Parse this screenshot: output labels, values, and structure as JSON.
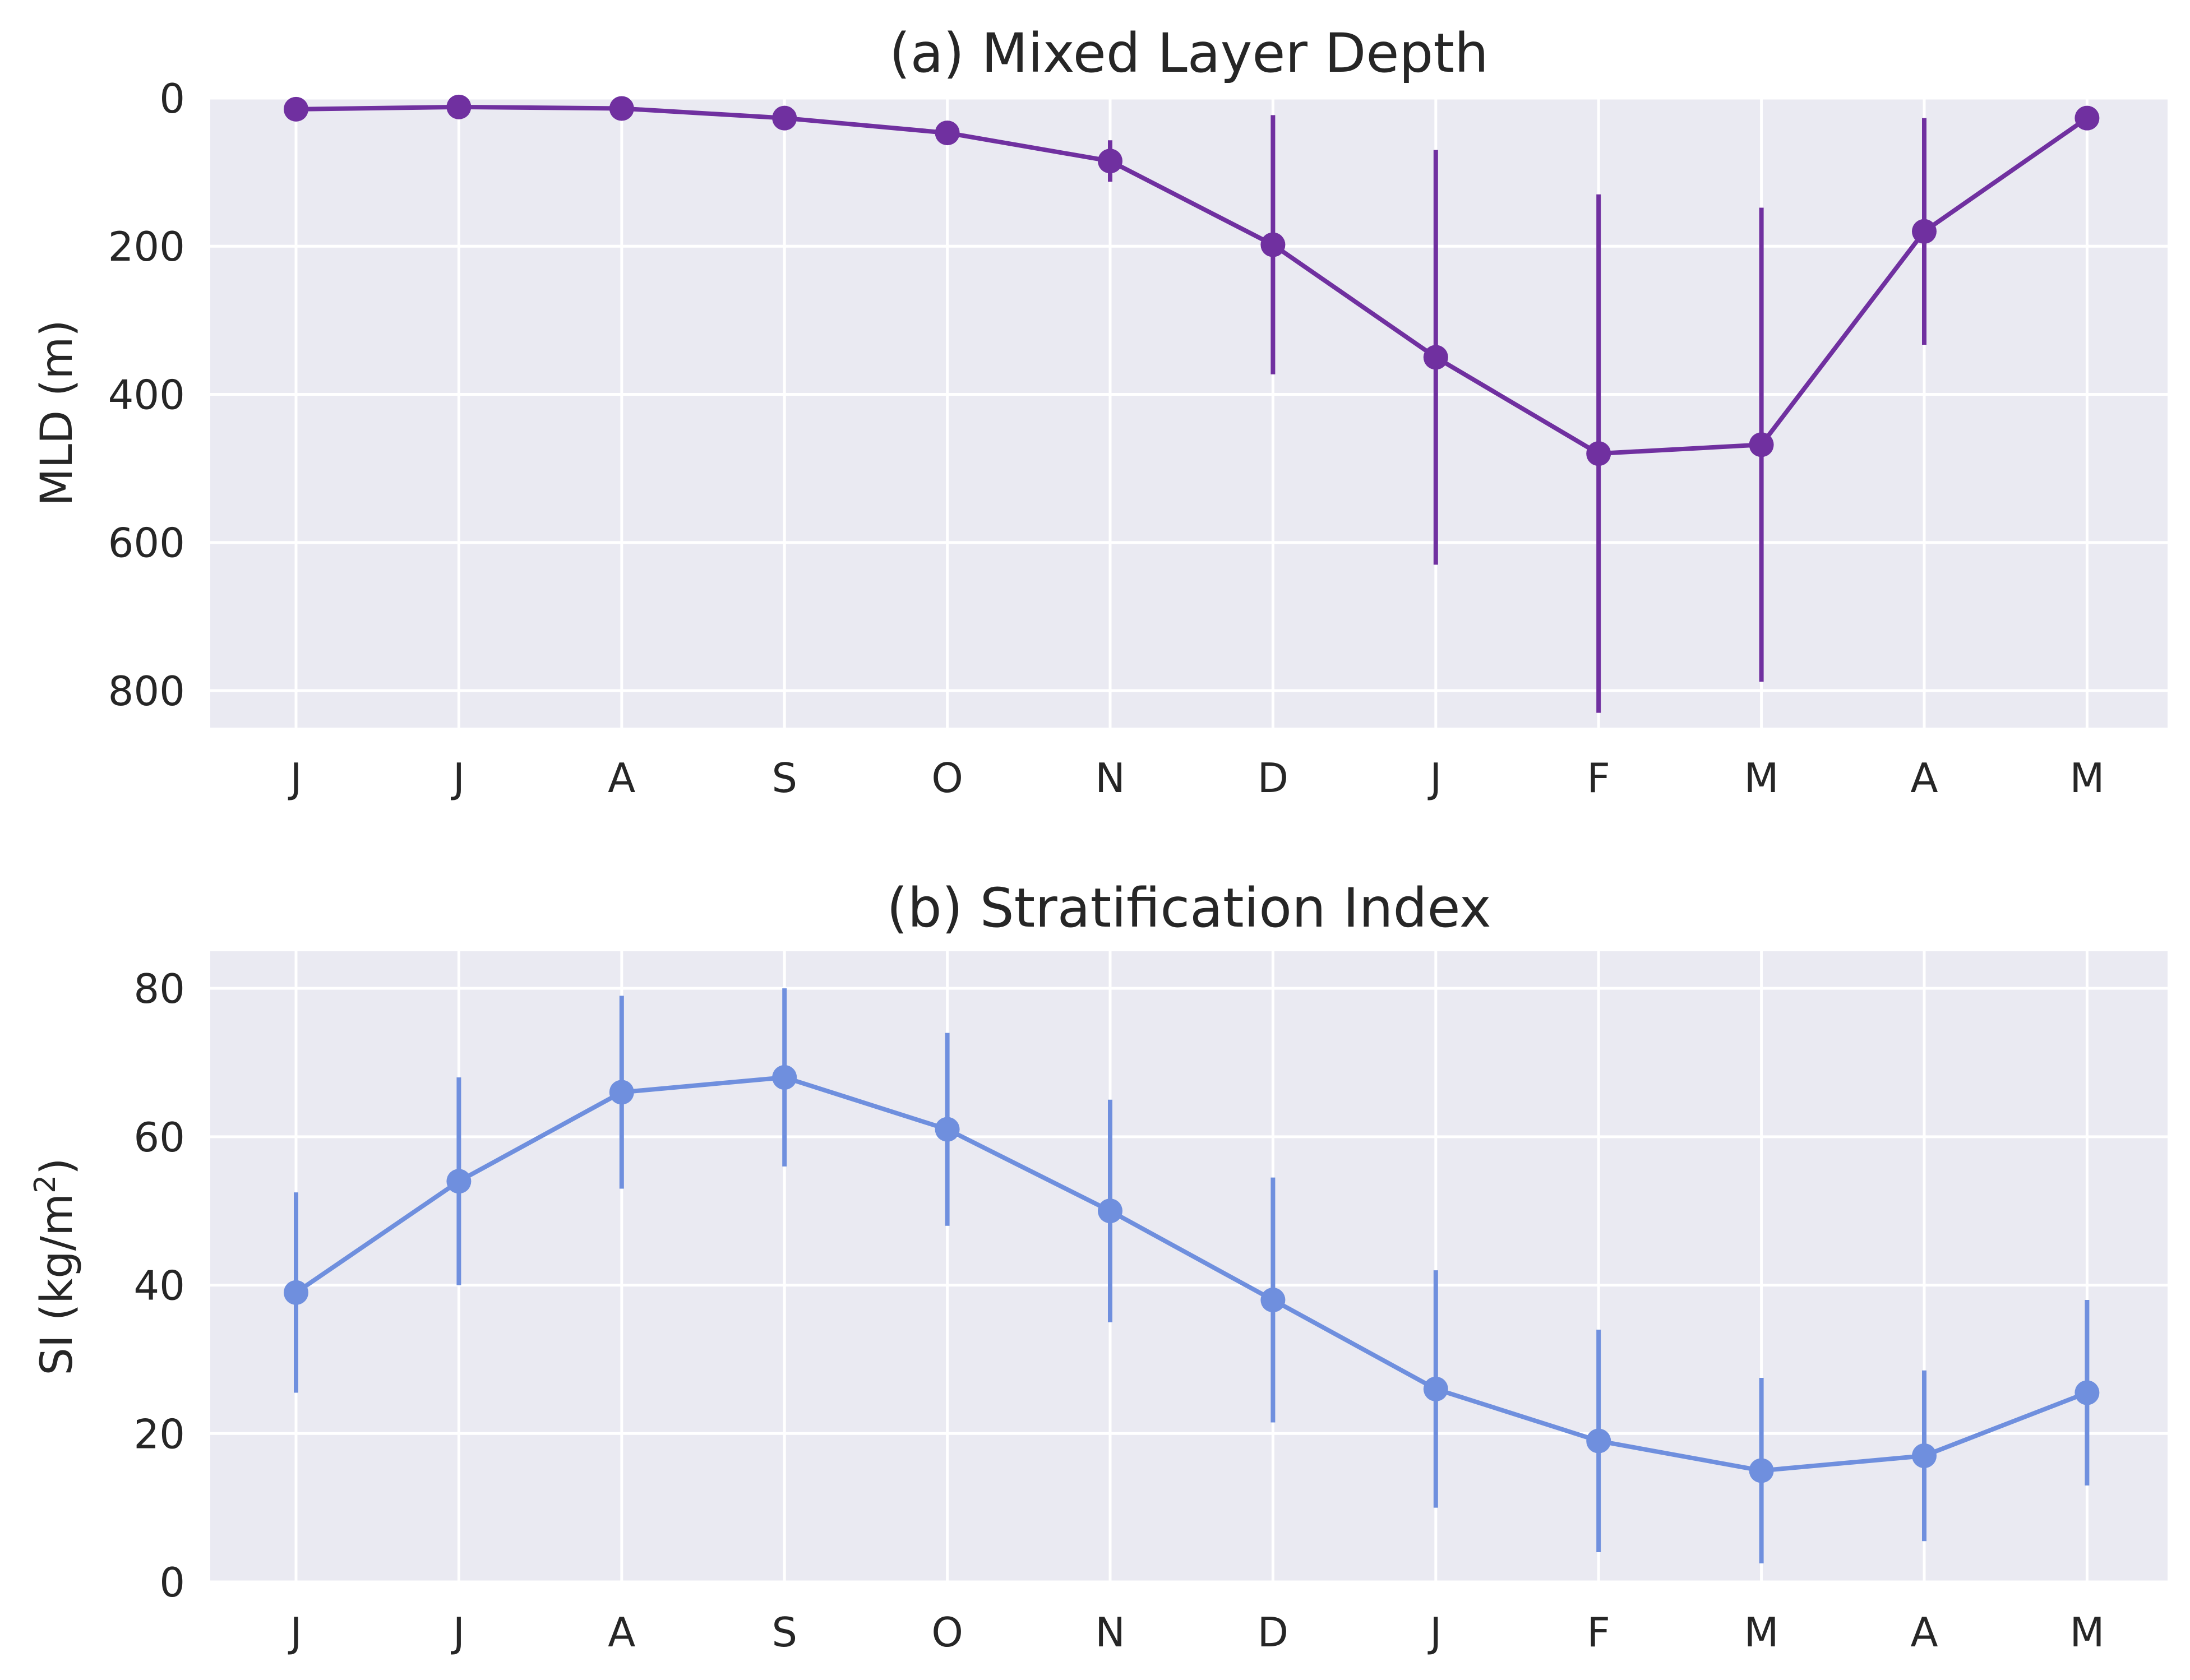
{
  "chart_data": [
    {
      "type": "line",
      "title": "(a) Mixed Layer Depth",
      "xlabel": "",
      "ylabel": "MLD (m)",
      "ylim": [
        850,
        0
      ],
      "y_inverted": true,
      "yticks": [
        0,
        200,
        400,
        600,
        800
      ],
      "categories": [
        "J",
        "J",
        "A",
        "S",
        "O",
        "N",
        "D",
        "J",
        "F",
        "M",
        "A",
        "M"
      ],
      "series": [
        {
          "values": [
            15,
            12,
            14,
            27,
            47,
            85,
            198,
            350,
            480,
            468,
            180,
            27
          ],
          "error": [
            0,
            0,
            0,
            0,
            0,
            28,
            175,
            280,
            350,
            320,
            153,
            0
          ]
        }
      ],
      "color": "#7030a0",
      "grid": true
    },
    {
      "type": "line",
      "title": "(b) Stratification Index",
      "xlabel": "",
      "ylabel_main": "SI (kg/m",
      "ylabel_sup": "2",
      "ylabel_end": ")",
      "ylim": [
        0,
        85
      ],
      "yticks": [
        0,
        20,
        40,
        60,
        80
      ],
      "categories": [
        "J",
        "J",
        "A",
        "S",
        "O",
        "N",
        "D",
        "J",
        "F",
        "M",
        "A",
        "M"
      ],
      "series": [
        {
          "values": [
            39,
            54,
            66,
            68,
            61,
            50,
            38,
            26,
            19,
            15,
            17,
            25.5
          ],
          "error": [
            13.5,
            14,
            13,
            12,
            13,
            15,
            16.5,
            16,
            15,
            12.5,
            11.5,
            12.5
          ]
        }
      ],
      "color": "#6f8fde",
      "grid": true
    }
  ]
}
